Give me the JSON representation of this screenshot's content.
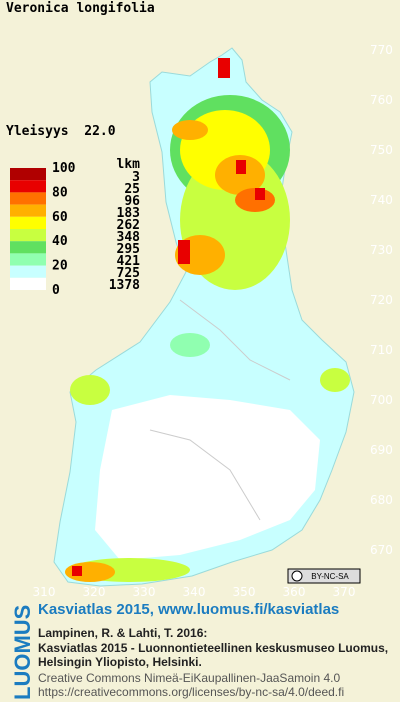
{
  "header": {
    "title": "Veronica longifolia",
    "frequency": "Yleisyys  22.0"
  },
  "legend": {
    "colors": [
      "#b00000",
      "#e80000",
      "#ff7000",
      "#ffb000",
      "#ffff00",
      "#c8ff40",
      "#60e060",
      "#90ffb0",
      "#c8ffff",
      "#ffffff"
    ],
    "scale_labels": [
      100,
      80,
      60,
      40,
      20,
      0
    ],
    "count_header": "lkm",
    "counts": [
      3,
      25,
      96,
      183,
      262,
      348,
      295,
      421,
      725,
      1378
    ]
  },
  "map": {
    "yticks": [
      770,
      760,
      750,
      740,
      730,
      720,
      710,
      700,
      690,
      680,
      670
    ],
    "xticks": [
      310,
      320,
      330,
      340,
      350,
      360,
      370
    ],
    "license_badge": "BY-NC-SA"
  },
  "footer": {
    "brand": "LUOMUS",
    "headline": "Kasviatlas 2015, www.luomus.fi/kasviatlas",
    "citation": [
      "Lampinen, R. & Lahti, T. 2016:",
      "Kasviatlas 2015 - Luonnontieteellinen keskusmuseo Luomus,",
      "Helsingin Yliopisto, Helsinki."
    ],
    "license": [
      "Creative Commons Nimeä-EiKaupallinen-JaaSamoin 4.0",
      "https://creativecommons.org/licenses/by-nc-sa/4.0/deed.fi"
    ]
  }
}
